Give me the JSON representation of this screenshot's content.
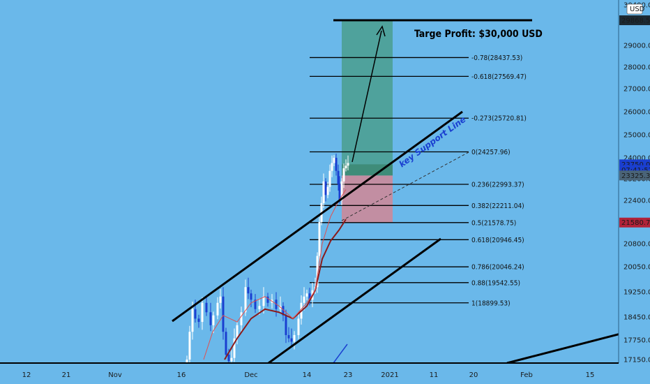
{
  "chart_data": {
    "type": "candlestick",
    "title": "Targe Profit: $30,000 USD",
    "currency_button": "USD",
    "annotation": "key Support Line",
    "y_ticks": [
      "30400.00",
      "29000.00",
      "28000.00",
      "27000.00",
      "26000.00",
      "25000.00",
      "24000.00",
      "23200.00",
      "22400.00",
      "21600.00",
      "20800.00",
      "20050.00",
      "19250.00",
      "18450.00",
      "17750.00",
      "17150.00"
    ],
    "x_ticks": [
      "12",
      "21",
      "Nov",
      "16",
      "Dec",
      "14",
      "23",
      "2021",
      "11",
      "20",
      "Feb",
      "15"
    ],
    "price_tags": [
      {
        "label": "29868.52",
        "price": 29868.52,
        "style": "dark"
      },
      {
        "label": "23750.00",
        "price": 23750,
        "style": "blue"
      },
      {
        "label": "07:41:52",
        "price": 23530,
        "style": "blue"
      },
      {
        "label": "23325.39",
        "price": 23325.39,
        "style": "gray"
      },
      {
        "label": "21580.72",
        "price": 21580.72,
        "style": "red"
      }
    ],
    "fib_levels": [
      {
        "label": "-0.78(28437.53)",
        "price": 28437.53
      },
      {
        "label": "-0.618(27569.47)",
        "price": 27569.47
      },
      {
        "label": "-0.273(25720.81)",
        "price": 25720.81
      },
      {
        "label": "0(24257.96)",
        "price": 24257.96
      },
      {
        "label": "0.236(22993.37)",
        "price": 22993.37
      },
      {
        "label": "0.382(22211.04)",
        "price": 22211.04
      },
      {
        "label": "0.5(21578.75)",
        "price": 21578.75
      },
      {
        "label": "0.618(20946.45)",
        "price": 20946.45
      },
      {
        "label": "0.786(20046.24)",
        "price": 20046.24
      },
      {
        "label": "0.88(19542.55)",
        "price": 19542.55
      },
      {
        "label": "1(18899.53)",
        "price": 18899.53
      }
    ],
    "target_price": 29868.52,
    "entry_price": 23325.39,
    "stop_price": 21580.72,
    "colors": {
      "background": "#6ab8ea",
      "bull": "#ffffff",
      "bear": "#1a3fd0",
      "profit_zone": "#4a9e8e",
      "loss_zone": "#cc8a9a",
      "ma_long": "#8b1a1a",
      "ma_short": "#e05050"
    }
  }
}
